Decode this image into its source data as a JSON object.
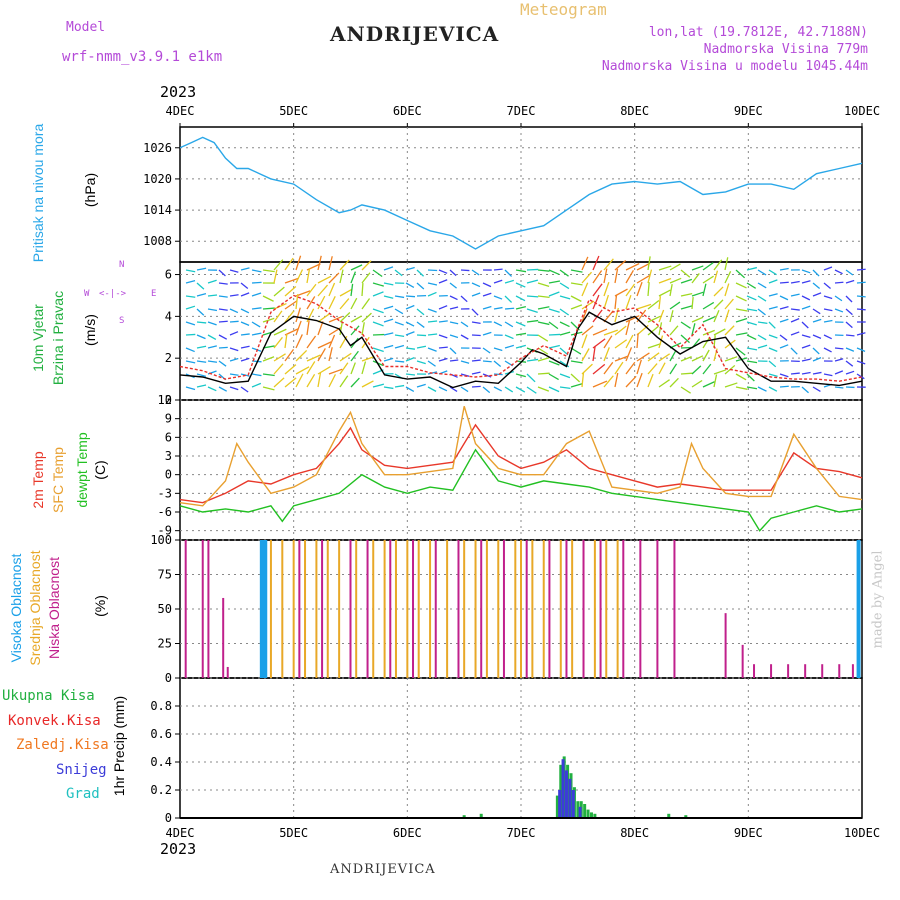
{
  "header": {
    "model_label": "Model",
    "model_name": "wrf-nmm_v3.9.1 e1km",
    "station": "ANDRIJEVICA",
    "meteogram": "Meteogram",
    "lonlat": "lon,lat (19.7812E, 42.7188N)",
    "altitude": "Nadmorska Visina 779m",
    "model_altitude": "Nadmorska Visina u modelu 1045.44m"
  },
  "footer": {
    "station": "ANDRIJEVICA",
    "credit": "made by Angel"
  },
  "time_axis": {
    "year": "2023",
    "labels": [
      "4DEC",
      "5DEC",
      "6DEC",
      "7DEC",
      "8DEC",
      "9DEC",
      "10DEC"
    ]
  },
  "colors": {
    "pressure": "#2aa7e8",
    "wind_speed": "#000000",
    "wind_gust": "#e8302a",
    "temp_2m": "#e8382a",
    "temp_sfc": "#e8a030",
    "dewpoint": "#22c022",
    "cloud_high": "#1aa0e8",
    "cloud_mid": "#e8a828",
    "cloud_low": "#c0208c",
    "rain_total": "#22b040",
    "rain_conv": "#e82828",
    "freezing": "#f07820",
    "snow": "#3c3cd8",
    "hail": "#20c0c0"
  },
  "labels": {
    "pressure": [
      "Pritisak na nivou mora"
    ],
    "pressure_unit": "(hPa)",
    "wind": [
      "10m Vjetar",
      "Brzina i Pravac"
    ],
    "wind_unit": "(m/s)",
    "compass": {
      "n": "N",
      "s": "S",
      "e": "E",
      "w": "W",
      "arrows": "<-|->"
    },
    "temp": [
      "2m Temp",
      "SFC Temp",
      "dewpt Temp"
    ],
    "temp_unit": "(C)",
    "cloud": [
      "Visoka Oblacnost",
      "Srednja Oblacnost",
      "Niska Oblacnost"
    ],
    "cloud_unit": "(%)",
    "precip_legend": [
      "Ukupna Kisa",
      "Konvek.Kisa",
      "Zaledj.Kisa",
      "Snijeg",
      "Grad"
    ],
    "precip_unit": "1hr Precip (mm)"
  },
  "chart_data": [
    {
      "type": "line",
      "name": "pressure",
      "ylim": [
        1004,
        1030
      ],
      "yticks": [
        1008,
        1014,
        1020,
        1026
      ],
      "series": [
        {
          "x": [
            0,
            0.1,
            0.2,
            0.3,
            0.4,
            0.5,
            0.6,
            0.7,
            0.8,
            1.0,
            1.2,
            1.4,
            1.5,
            1.6,
            1.8,
            2.0,
            2.2,
            2.4,
            2.6,
            2.8,
            3.0,
            3.2,
            3.4,
            3.6,
            3.8,
            4.0,
            4.2,
            4.4,
            4.6,
            4.8,
            5.0,
            5.2,
            5.4,
            5.6,
            5.8,
            6.0
          ],
          "y": [
            1026,
            1027,
            1028,
            1027,
            1024,
            1022,
            1022,
            1021,
            1020,
            1019,
            1016,
            1013.5,
            1014,
            1015,
            1014,
            1012,
            1010,
            1009,
            1006.5,
            1009,
            1010,
            1011,
            1014,
            1017,
            1019,
            1019.5,
            1019,
            1019.5,
            1017,
            1017.5,
            1019,
            1019,
            1018,
            1021,
            1022,
            1023
          ]
        }
      ]
    },
    {
      "type": "line",
      "name": "wind",
      "ylim": [
        0,
        6.6
      ],
      "yticks": [
        0,
        2,
        4,
        6
      ],
      "series": [
        {
          "x": [
            0,
            0.2,
            0.4,
            0.6,
            0.8,
            1.0,
            1.2,
            1.4,
            1.5,
            1.6,
            1.8,
            2.0,
            2.2,
            2.4,
            2.6,
            2.8,
            3.0,
            3.1,
            3.2,
            3.4,
            3.5,
            3.6,
            3.8,
            4.0,
            4.2,
            4.4,
            4.6,
            4.8,
            5.0,
            5.2,
            5.4,
            5.6,
            5.8,
            6.0
          ],
          "y": [
            1.2,
            1.1,
            0.8,
            0.9,
            3.2,
            4.0,
            3.8,
            3.4,
            2.6,
            3.0,
            1.2,
            1.0,
            1.1,
            0.6,
            0.9,
            0.8,
            1.8,
            2.4,
            2.2,
            1.6,
            3.4,
            4.2,
            3.6,
            4.0,
            3.0,
            2.2,
            2.8,
            3.0,
            1.5,
            0.9,
            0.9,
            0.8,
            0.7,
            0.9
          ]
        },
        {
          "x": [
            0,
            0.2,
            0.4,
            0.6,
            0.8,
            1.0,
            1.2,
            1.4,
            1.6,
            1.8,
            2.0,
            2.2,
            2.4,
            2.6,
            2.8,
            3.0,
            3.2,
            3.4,
            3.6,
            3.8,
            4.0,
            4.2,
            4.4,
            4.6,
            4.8,
            5.0,
            5.2,
            5.4,
            5.6,
            5.8,
            6.0
          ],
          "y": [
            1.6,
            1.4,
            1.0,
            1.2,
            4.2,
            5.0,
            4.6,
            3.8,
            3.2,
            1.6,
            1.6,
            1.3,
            1.2,
            1.1,
            1.2,
            2.0,
            2.6,
            2.1,
            4.8,
            4.2,
            4.4,
            3.6,
            2.5,
            3.6,
            1.5,
            1.3,
            1.1,
            1.0,
            1.0,
            0.9,
            1.1
          ]
        }
      ]
    },
    {
      "type": "line",
      "name": "temperature",
      "ylim": [
        -10.5,
        12
      ],
      "yticks": [
        -9,
        -6,
        -3,
        0,
        3,
        6,
        9,
        12
      ],
      "series": [
        {
          "x": [
            0,
            0.2,
            0.4,
            0.6,
            0.8,
            1.0,
            1.2,
            1.4,
            1.5,
            1.6,
            1.8,
            2.0,
            2.2,
            2.4,
            2.6,
            2.8,
            3.0,
            3.2,
            3.4,
            3.6,
            3.8,
            4.0,
            4.2,
            4.4,
            4.6,
            4.8,
            5.0,
            5.2,
            5.4,
            5.6,
            5.8,
            6.0
          ],
          "y": [
            -4,
            -4.5,
            -3,
            -1,
            -1.5,
            0,
            1,
            5,
            7.5,
            4,
            1.5,
            1,
            1.5,
            2,
            8,
            3,
            1,
            2,
            4,
            1,
            0,
            -1,
            -2,
            -1.5,
            -2,
            -2.5,
            -2.5,
            -2.5,
            3.5,
            1,
            0.5,
            -0.5
          ]
        },
        {
          "x": [
            0,
            0.2,
            0.4,
            0.5,
            0.6,
            0.8,
            1.0,
            1.2,
            1.4,
            1.5,
            1.6,
            1.8,
            2.0,
            2.2,
            2.4,
            2.5,
            2.6,
            2.8,
            3.0,
            3.2,
            3.4,
            3.6,
            3.8,
            4.0,
            4.2,
            4.4,
            4.5,
            4.6,
            4.8,
            5.0,
            5.2,
            5.4,
            5.6,
            5.8,
            6.0
          ],
          "y": [
            -4.5,
            -5,
            -1,
            5,
            2,
            -3,
            -2,
            0,
            7,
            10,
            5,
            0,
            0,
            0.5,
            1,
            11,
            5,
            1,
            0,
            0,
            5,
            7,
            -2,
            -2.5,
            -3,
            -2,
            5,
            1,
            -3,
            -3.5,
            -3.5,
            6.5,
            1,
            -3.5,
            -4
          ]
        },
        {
          "x": [
            0,
            0.2,
            0.4,
            0.6,
            0.8,
            0.9,
            1.0,
            1.2,
            1.4,
            1.6,
            1.8,
            2.0,
            2.2,
            2.4,
            2.6,
            2.8,
            3.0,
            3.2,
            3.4,
            3.6,
            3.8,
            4.0,
            4.2,
            4.4,
            4.6,
            4.8,
            5.0,
            5.1,
            5.2,
            5.4,
            5.6,
            5.8,
            6.0
          ],
          "y": [
            -5,
            -6,
            -5.5,
            -6,
            -5,
            -7.5,
            -5,
            -4,
            -3,
            0,
            -2,
            -3,
            -2,
            -2.5,
            4,
            -1,
            -2,
            -1,
            -1.5,
            -2,
            -3,
            -3.5,
            -4,
            -4.5,
            -5,
            -5.5,
            -6,
            -9,
            -7,
            -6,
            -5,
            -6,
            -5.5
          ]
        }
      ]
    },
    {
      "type": "bar",
      "name": "cloud",
      "ylim": [
        0,
        100
      ],
      "yticks": [
        0,
        25,
        50,
        75,
        100
      ],
      "series": [
        {
          "name": "high",
          "x": [
            0.72,
            0.75,
            5.97
          ],
          "y": [
            100,
            100,
            100
          ]
        },
        {
          "name": "mid",
          "x": [
            0.8,
            0.9,
            1.0,
            1.1,
            1.2,
            1.3,
            1.4,
            1.55,
            1.7,
            1.8,
            1.9,
            2.0,
            2.1,
            2.2,
            2.35,
            2.5,
            2.6,
            2.7,
            2.8,
            2.95,
            3.0,
            3.1,
            3.2,
            3.35,
            3.45,
            3.55,
            3.65,
            3.75,
            3.85
          ],
          "y": [
            100,
            100,
            100,
            100,
            100,
            100,
            100,
            100,
            100,
            100,
            100,
            100,
            100,
            100,
            100,
            100,
            100,
            100,
            100,
            100,
            100,
            100,
            100,
            100,
            100,
            100,
            100,
            100,
            100
          ]
        },
        {
          "name": "low",
          "x": [
            0.05,
            0.2,
            0.25,
            0.38,
            0.42,
            0.72,
            1.05,
            1.25,
            1.5,
            1.65,
            1.85,
            2.05,
            2.25,
            2.45,
            2.65,
            2.85,
            3.05,
            3.25,
            3.4,
            3.55,
            3.7,
            3.9,
            4.05,
            4.2,
            4.35,
            4.8,
            4.95,
            5.05,
            5.2,
            5.35,
            5.5,
            5.65,
            5.8,
            5.92
          ],
          "y": [
            100,
            100,
            100,
            58,
            8,
            100,
            100,
            100,
            100,
            100,
            100,
            100,
            100,
            100,
            100,
            100,
            100,
            100,
            100,
            100,
            100,
            100,
            100,
            100,
            100,
            47,
            24,
            10,
            10,
            10,
            10,
            10,
            10,
            10
          ]
        }
      ]
    },
    {
      "type": "bar",
      "name": "precipitation",
      "ylim": [
        0,
        1.0
      ],
      "yticks": [
        0,
        0.2,
        0.4,
        0.6,
        0.8
      ],
      "series": [
        {
          "name": "total",
          "x": [
            3.32,
            3.35,
            3.38,
            3.41,
            3.44,
            3.47,
            3.5,
            3.53,
            3.56,
            3.59,
            3.62,
            3.65,
            2.5,
            2.65,
            4.3,
            4.45
          ],
          "y": [
            0.16,
            0.38,
            0.44,
            0.38,
            0.32,
            0.22,
            0.12,
            0.12,
            0.1,
            0.06,
            0.04,
            0.03,
            0.02,
            0.03,
            0.03,
            0.02
          ]
        },
        {
          "name": "snow",
          "x": [
            3.34,
            3.37,
            3.4,
            3.43,
            3.46,
            3.52
          ],
          "y": [
            0.2,
            0.42,
            0.34,
            0.28,
            0.2,
            0.08
          ]
        }
      ]
    }
  ]
}
